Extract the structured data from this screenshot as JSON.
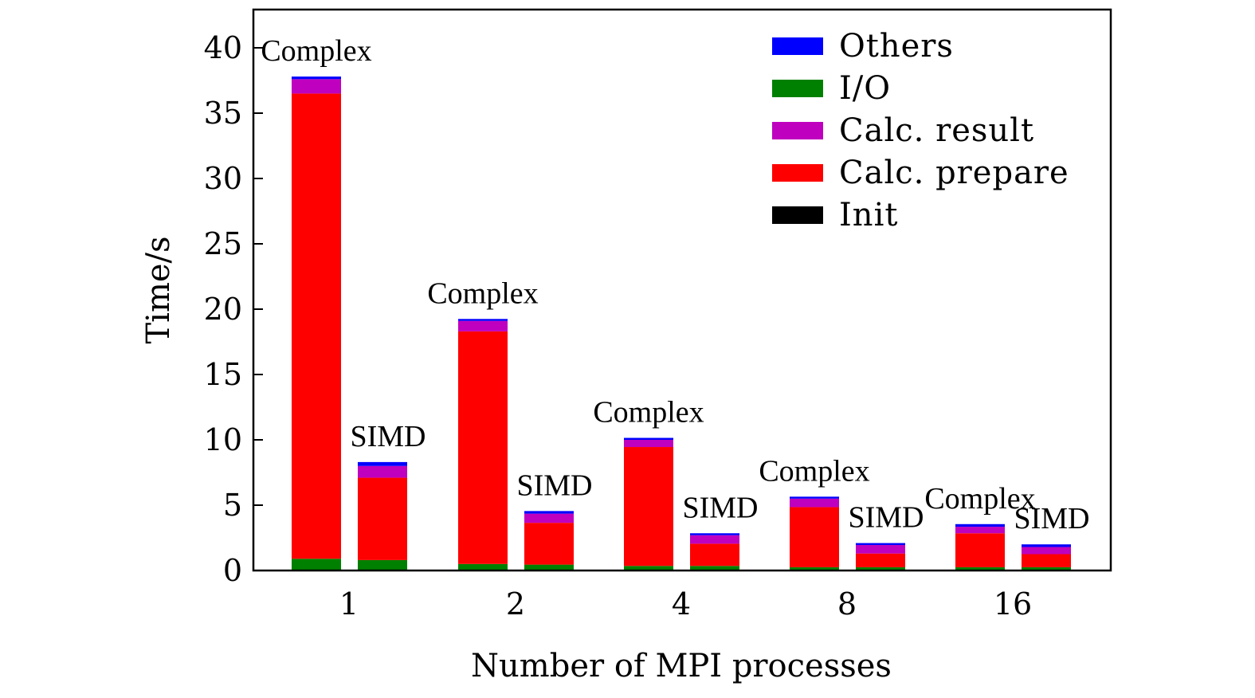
{
  "chart_data": {
    "type": "bar",
    "stacked": true,
    "categories": [
      "1",
      "2",
      "4",
      "8",
      "16"
    ],
    "variants": [
      "Complex",
      "SIMD"
    ],
    "xlabel": "Number of MPI processes",
    "ylabel": "Time/s",
    "ylim": [
      0,
      43
    ],
    "yticks": [
      0,
      5,
      10,
      15,
      20,
      25,
      30,
      35,
      40
    ],
    "legend_position": "top-right",
    "colors": {
      "Init": "#000000",
      "I/O": "#008000",
      "Calc. prepare": "#ff0000",
      "Calc. result": "#bf00bf",
      "Others": "#0000ff"
    },
    "legend": [
      "Others",
      "I/O",
      "Calc. result",
      "Calc. prepare",
      "Init"
    ],
    "stack_order": [
      "Init",
      "I/O",
      "Calc. prepare",
      "Calc. result",
      "Others"
    ],
    "bars": [
      {
        "category": "1",
        "label": "Complex",
        "segments": {
          "Init": 0.05,
          "I/O": 0.85,
          "Calc. prepare": 35.6,
          "Calc. result": 1.1,
          "Others": 0.2
        }
      },
      {
        "category": "1",
        "label": "SIMD",
        "segments": {
          "Init": 0.05,
          "I/O": 0.75,
          "Calc. prepare": 6.3,
          "Calc. result": 0.9,
          "Others": 0.3
        }
      },
      {
        "category": "2",
        "label": "Complex",
        "segments": {
          "Init": 0.05,
          "I/O": 0.45,
          "Calc. prepare": 17.8,
          "Calc. result": 0.8,
          "Others": 0.15
        }
      },
      {
        "category": "2",
        "label": "SIMD",
        "segments": {
          "Init": 0.05,
          "I/O": 0.4,
          "Calc. prepare": 3.2,
          "Calc. result": 0.7,
          "Others": 0.2
        }
      },
      {
        "category": "4",
        "label": "Complex",
        "segments": {
          "Init": 0.05,
          "I/O": 0.3,
          "Calc. prepare": 9.1,
          "Calc. result": 0.55,
          "Others": 0.15
        }
      },
      {
        "category": "4",
        "label": "SIMD",
        "segments": {
          "Init": 0.05,
          "I/O": 0.3,
          "Calc. prepare": 1.7,
          "Calc. result": 0.65,
          "Others": 0.15
        }
      },
      {
        "category": "8",
        "label": "Complex",
        "segments": {
          "Init": 0.05,
          "I/O": 0.2,
          "Calc. prepare": 4.6,
          "Calc. result": 0.65,
          "Others": 0.15
        }
      },
      {
        "category": "8",
        "label": "SIMD",
        "segments": {
          "Init": 0.05,
          "I/O": 0.2,
          "Calc. prepare": 1.05,
          "Calc. result": 0.65,
          "Others": 0.15
        }
      },
      {
        "category": "16",
        "label": "Complex",
        "segments": {
          "Init": 0.05,
          "I/O": 0.2,
          "Calc. prepare": 2.6,
          "Calc. result": 0.5,
          "Others": 0.2
        }
      },
      {
        "category": "16",
        "label": "SIMD",
        "segments": {
          "Init": 0.05,
          "I/O": 0.2,
          "Calc. prepare": 1.0,
          "Calc. result": 0.55,
          "Others": 0.2
        }
      }
    ]
  }
}
